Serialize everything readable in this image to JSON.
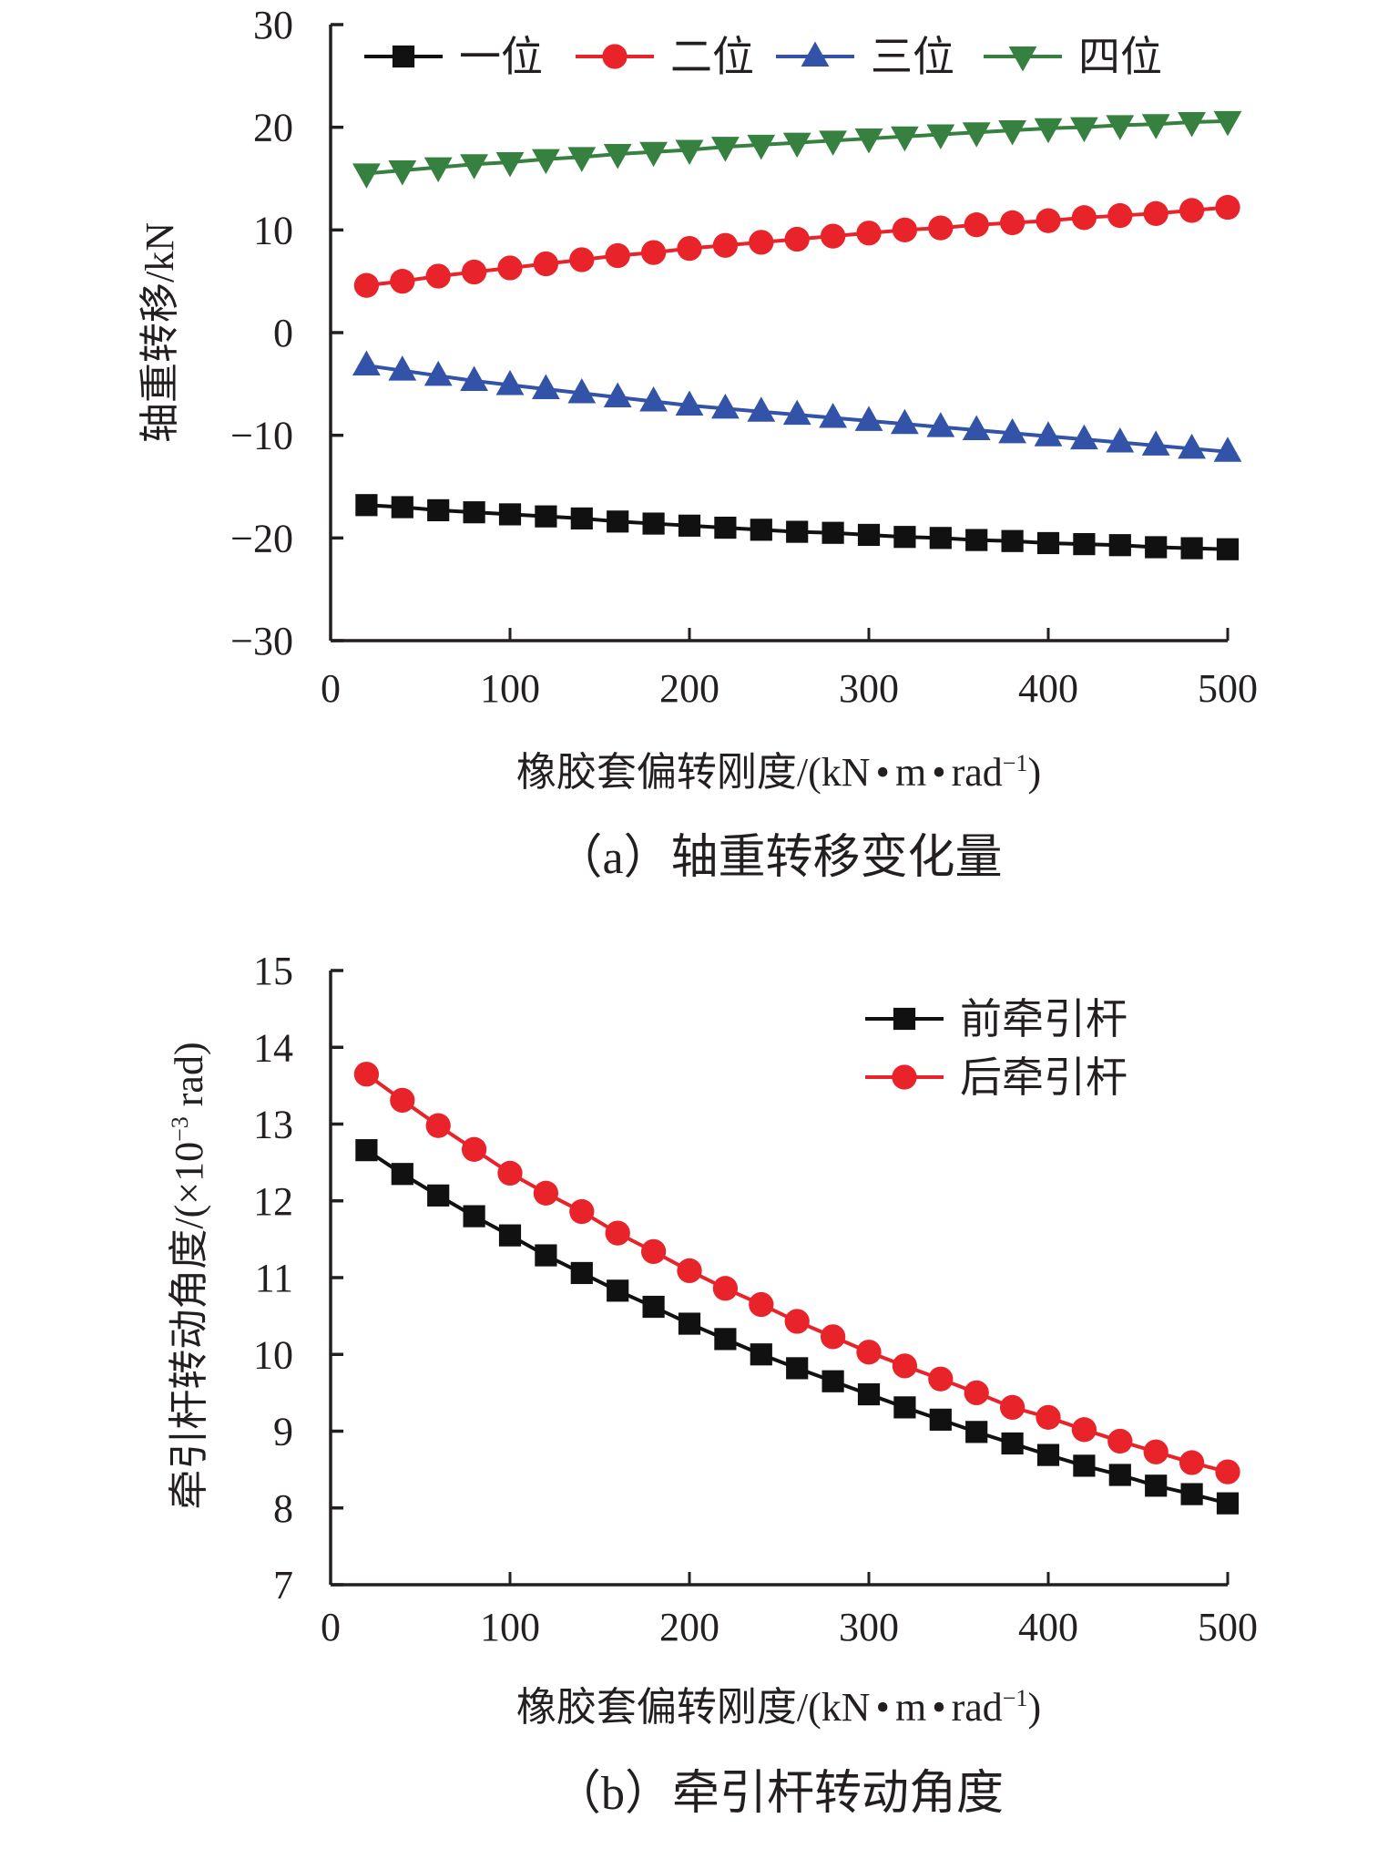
{
  "chart_data": [
    {
      "type": "line",
      "id": "a",
      "title": "(a) 轴重转移变化量",
      "xlabel": "橡胶套偏转刚度/(kN·m·rad⁻¹)",
      "ylabel": "轴重转移/kN",
      "xlim": [
        0,
        500
      ],
      "ylim": [
        -30,
        30
      ],
      "xticks": [
        0,
        100,
        200,
        300,
        400,
        500
      ],
      "yticks": [
        30,
        20,
        10,
        0,
        -10,
        -20,
        -30
      ],
      "ytick_labels": [
        "30",
        "20",
        "10",
        "0",
        "−10",
        "−20",
        "−30"
      ],
      "grid": false,
      "legend_position": "top",
      "x": [
        20,
        40,
        60,
        80,
        100,
        120,
        140,
        160,
        180,
        200,
        220,
        240,
        260,
        280,
        300,
        320,
        340,
        360,
        380,
        400,
        420,
        440,
        460,
        480,
        500
      ],
      "series": [
        {
          "name": "一位",
          "color": "#111111",
          "marker": "square",
          "values": [
            -16.8,
            -17.0,
            -17.3,
            -17.5,
            -17.7,
            -17.9,
            -18.1,
            -18.4,
            -18.6,
            -18.8,
            -19.0,
            -19.2,
            -19.4,
            -19.5,
            -19.7,
            -19.9,
            -20.0,
            -20.2,
            -20.3,
            -20.5,
            -20.6,
            -20.7,
            -20.9,
            -21.0,
            -21.1
          ]
        },
        {
          "name": "二位",
          "color": "#e8232a",
          "marker": "circle",
          "values": [
            4.6,
            5.0,
            5.5,
            5.9,
            6.3,
            6.7,
            7.1,
            7.5,
            7.8,
            8.2,
            8.5,
            8.8,
            9.1,
            9.4,
            9.7,
            10.0,
            10.2,
            10.5,
            10.7,
            10.9,
            11.2,
            11.4,
            11.6,
            11.9,
            12.2
          ]
        },
        {
          "name": "三位",
          "color": "#3353a8",
          "marker": "triangle-up",
          "values": [
            -3.2,
            -3.7,
            -4.2,
            -4.7,
            -5.1,
            -5.5,
            -5.9,
            -6.3,
            -6.7,
            -7.1,
            -7.4,
            -7.7,
            -8.0,
            -8.3,
            -8.6,
            -8.9,
            -9.2,
            -9.5,
            -9.8,
            -10.1,
            -10.4,
            -10.7,
            -11.0,
            -11.3,
            -11.6
          ]
        },
        {
          "name": "四位",
          "color": "#368040",
          "marker": "triangle-down",
          "values": [
            15.5,
            15.8,
            16.1,
            16.4,
            16.6,
            16.9,
            17.1,
            17.4,
            17.6,
            17.8,
            18.1,
            18.3,
            18.5,
            18.7,
            18.9,
            19.1,
            19.3,
            19.5,
            19.7,
            19.9,
            20.0,
            20.2,
            20.3,
            20.5,
            20.6
          ]
        }
      ]
    },
    {
      "type": "line",
      "id": "b",
      "title": "(b) 牵引杆转动角度",
      "xlabel": "橡胶套偏转刚度/(kN·m·rad⁻¹)",
      "ylabel": "牵引杆转动角度/(×10⁻³ rad)",
      "xlim": [
        0,
        500
      ],
      "ylim": [
        7,
        15
      ],
      "xticks": [
        0,
        100,
        200,
        300,
        400,
        500
      ],
      "yticks": [
        15,
        14,
        13,
        12,
        11,
        10,
        9,
        8,
        7
      ],
      "ytick_labels": [
        "15",
        "14",
        "13",
        "12",
        "11",
        "10",
        "9",
        "8",
        "7"
      ],
      "grid": false,
      "legend_position": "top-right",
      "x": [
        20,
        40,
        60,
        80,
        100,
        120,
        140,
        160,
        180,
        200,
        220,
        240,
        260,
        280,
        300,
        320,
        340,
        360,
        380,
        400,
        420,
        440,
        460,
        480,
        500
      ],
      "series": [
        {
          "name": "前牵引杆",
          "color": "#111111",
          "marker": "square",
          "values": [
            12.66,
            12.35,
            12.07,
            11.8,
            11.55,
            11.29,
            11.06,
            10.83,
            10.62,
            10.4,
            10.2,
            10.0,
            9.82,
            9.65,
            9.48,
            9.31,
            9.15,
            8.99,
            8.84,
            8.69,
            8.55,
            8.43,
            8.29,
            8.18,
            8.06
          ]
        },
        {
          "name": "后牵引杆",
          "color": "#e8232a",
          "marker": "circle",
          "values": [
            13.65,
            13.31,
            12.98,
            12.67,
            12.36,
            12.1,
            11.86,
            11.58,
            11.34,
            11.09,
            10.86,
            10.65,
            10.43,
            10.23,
            10.03,
            9.85,
            9.68,
            9.5,
            9.31,
            9.18,
            9.02,
            8.87,
            8.73,
            8.59,
            8.47
          ]
        }
      ]
    }
  ],
  "labels": {
    "a": {
      "xlabel_main": "橡胶套偏转刚度/(kN",
      "xlabel_dot": "•",
      "xlabel_m": "m",
      "xlabel_rad": "rad",
      "xlabel_sup": "−1",
      "xlabel_close": ")",
      "ylabel": "轴重转移/kN",
      "caption": "（a）轴重转移变化量"
    },
    "b": {
      "xlabel_main": "橡胶套偏转刚度/(kN",
      "xlabel_dot": "•",
      "xlabel_m": "m",
      "xlabel_rad": "rad",
      "xlabel_sup": "−1",
      "xlabel_close": ")",
      "ylabel_main": "牵引杆转动角度/(×10",
      "ylabel_sup": "−3",
      "ylabel_end": " rad)",
      "caption": "（b）牵引杆转动角度"
    }
  }
}
